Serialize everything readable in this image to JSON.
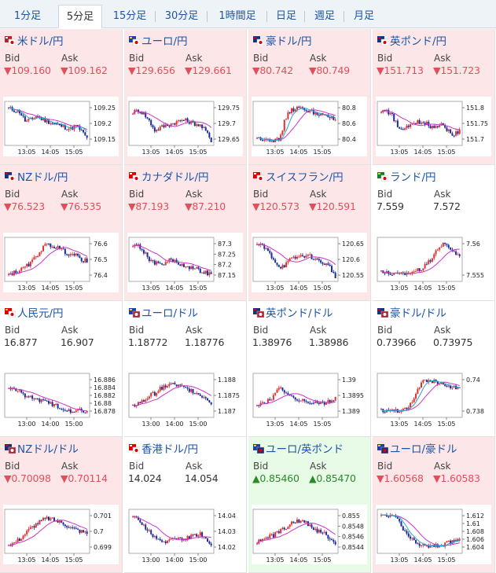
{
  "tabs": [
    {
      "label": "1分足",
      "active": false
    },
    {
      "label": "5分足",
      "active": true
    },
    {
      "label": "15分足",
      "active": false
    },
    {
      "label": "30分足",
      "active": false
    },
    {
      "label": "1時間足",
      "active": false
    },
    {
      "label": "日足",
      "active": false
    },
    {
      "label": "週足",
      "active": false
    },
    {
      "label": "月足",
      "active": false
    }
  ],
  "colors": {
    "up_candle": "#e03030",
    "down_candle": "#1a2a9a",
    "ma_line": "#cc33cc",
    "ma2_line": "#22aacc",
    "bg_down": "#fde6e8",
    "bg_up": "#e8fbe6",
    "text_down": "#e0505a",
    "text_up": "#2a8a2a"
  },
  "labels": {
    "bid": "Bid",
    "ask": "Ask"
  },
  "pairs": [
    {
      "name": "米ドル/円",
      "flag": "us-jp-flag-icon",
      "dir": "down",
      "bid": "▼109.160",
      "ask": "▼109.162",
      "chart": {
        "ticks": [
          "109.25",
          "109.2",
          "109.15"
        ],
        "times": [
          "13:05",
          "14:05",
          "15:05"
        ],
        "ma2": true
      }
    },
    {
      "name": "ユーロ/円",
      "flag": "eu-jp-flag-icon",
      "dir": "down",
      "bid": "▼129.656",
      "ask": "▼129.661",
      "chart": {
        "ticks": [
          "129.75",
          "129.7",
          "129.65"
        ],
        "times": [
          "13:05",
          "14:05",
          "15:05"
        ],
        "ma2": false
      }
    },
    {
      "name": "豪ドル/円",
      "flag": "au-jp-flag-icon",
      "dir": "down",
      "bid": "▼80.742",
      "ask": "▼80.749",
      "chart": {
        "ticks": [
          "80.8",
          "80.6",
          "80.4"
        ],
        "times": [
          "13:05",
          "14:05",
          "15:05"
        ],
        "ma2": true
      }
    },
    {
      "name": "英ポンド/円",
      "flag": "gb-jp-flag-icon",
      "dir": "down",
      "bid": "▼151.713",
      "ask": "▼151.723",
      "chart": {
        "ticks": [
          "151.8",
          "151.75",
          "151.7"
        ],
        "times": [
          "13:05",
          "14:05",
          "15:05"
        ],
        "ma2": false
      }
    },
    {
      "name": "NZドル/円",
      "flag": "nz-jp-flag-icon",
      "dir": "down",
      "bid": "▼76.523",
      "ask": "▼76.535",
      "chart": {
        "ticks": [
          "76.6",
          "76.5",
          "76.4"
        ],
        "times": [
          "13:05",
          "14:05",
          "15:05"
        ],
        "ma2": false
      }
    },
    {
      "name": "カナダドル/円",
      "flag": "ca-jp-flag-icon",
      "dir": "down",
      "bid": "▼87.193",
      "ask": "▼87.210",
      "chart": {
        "ticks": [
          "87.3",
          "87.25",
          "87.2",
          "87.15"
        ],
        "times": [
          "13:05",
          "14:05",
          "15:05"
        ],
        "ma2": false
      }
    },
    {
      "name": "スイスフラン/円",
      "flag": "ch-jp-flag-icon",
      "dir": "down",
      "bid": "▼120.573",
      "ask": "▼120.591",
      "chart": {
        "ticks": [
          "120.65",
          "120.6",
          "120.55"
        ],
        "times": [
          "13:05",
          "14:05",
          "15:05"
        ],
        "ma2": false
      }
    },
    {
      "name": "ランド/円",
      "flag": "za-jp-flag-icon",
      "dir": "neutral",
      "bid": "7.559",
      "ask": "7.572",
      "chart": {
        "ticks": [
          "7.56",
          "7.555"
        ],
        "times": [
          "13:05",
          "14:05",
          "15:05"
        ],
        "ma2": false
      }
    },
    {
      "name": "人民元/円",
      "flag": "cn-jp-flag-icon",
      "dir": "neutral",
      "bid": "16.877",
      "ask": "16.907",
      "chart": {
        "ticks": [
          "16.886",
          "16.884",
          "16.882",
          "16.88",
          "16.878"
        ],
        "times": [
          "13:00",
          "14:00",
          "15:00"
        ],
        "ma2": false
      }
    },
    {
      "name": "ユーロ/ドル",
      "flag": "eu-us-flag-icon",
      "dir": "neutral",
      "bid": "1.18772",
      "ask": "1.18776",
      "chart": {
        "ticks": [
          "1.188",
          "1.1875",
          "1.187"
        ],
        "times": [
          "13:00",
          "14:00",
          "15:00"
        ],
        "ma2": false
      }
    },
    {
      "name": "英ポンド/ドル",
      "flag": "gb-us-flag-icon",
      "dir": "neutral",
      "bid": "1.38976",
      "ask": "1.38986",
      "chart": {
        "ticks": [
          "1.39",
          "1.3895",
          "1.389"
        ],
        "times": [
          "13:05",
          "14:05",
          "15:05"
        ],
        "ma2": false
      }
    },
    {
      "name": "豪ドル/ドル",
      "flag": "au-us-flag-icon",
      "dir": "neutral",
      "bid": "0.73966",
      "ask": "0.73975",
      "chart": {
        "ticks": [
          "0.74",
          "0.738"
        ],
        "times": [
          "13:05",
          "14:05",
          "15:05"
        ],
        "ma2": true
      }
    },
    {
      "name": "NZドル/ドル",
      "flag": "nz-us-flag-icon",
      "dir": "down",
      "bid": "▼0.70098",
      "ask": "▼0.70114",
      "chart": {
        "ticks": [
          "0.701",
          "0.7",
          "0.699"
        ],
        "times": [
          "13:05",
          "14:05",
          "15:05"
        ],
        "ma2": false
      }
    },
    {
      "name": "香港ドル/円",
      "flag": "hk-jp-flag-icon",
      "dir": "neutral",
      "bid": "14.024",
      "ask": "14.054",
      "chart": {
        "ticks": [
          "14.04",
          "14.03",
          "14.02"
        ],
        "times": [
          "13:00",
          "14:00",
          "15:00"
        ],
        "ma2": false
      }
    },
    {
      "name": "ユーロ/英ポンド",
      "flag": "eu-gb-flag-icon",
      "dir": "up",
      "bid": "▲0.85460",
      "ask": "▲0.85470",
      "chart": {
        "ticks": [
          "0.855",
          "0.8548",
          "0.8546",
          "0.8544"
        ],
        "times": [
          "13:05",
          "14:05",
          "15:05"
        ],
        "ma2": false
      }
    },
    {
      "name": "ユーロ/豪ドル",
      "flag": "eu-au-flag-icon",
      "dir": "down",
      "bid": "▼1.60568",
      "ask": "▼1.60583",
      "chart": {
        "ticks": [
          "1.612",
          "1.61",
          "1.608",
          "1.606",
          "1.604"
        ],
        "times": [
          "13:05",
          "14:05",
          "15:05"
        ],
        "ma2": true
      }
    }
  ]
}
